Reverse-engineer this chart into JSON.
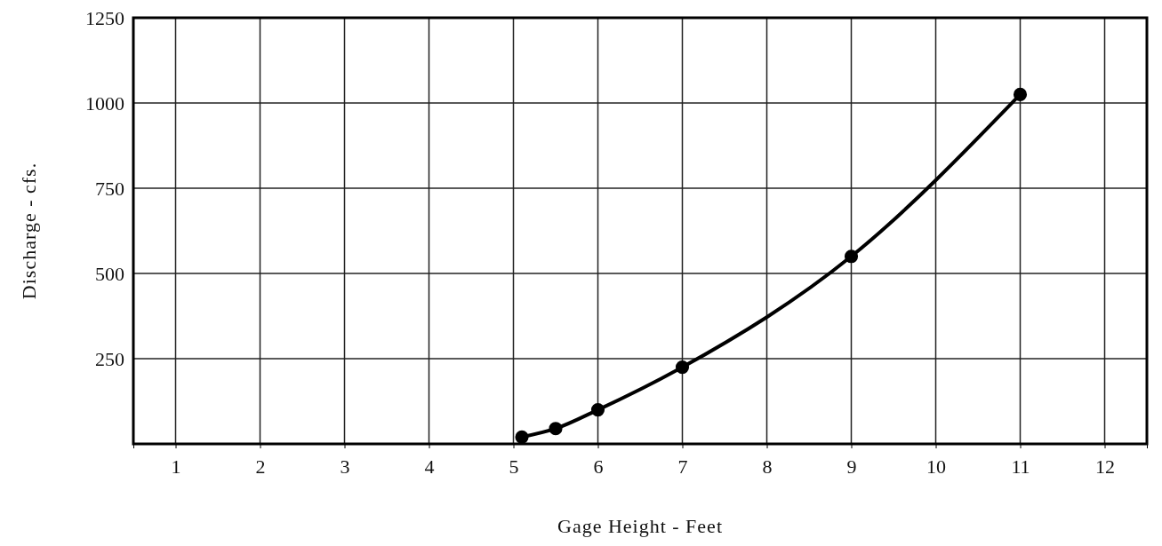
{
  "chart_data": {
    "type": "line",
    "xlabel": "Gage Height - Feet",
    "ylabel": "Discharge - cfs.",
    "x": [
      5.1,
      5.5,
      6,
      7,
      9,
      11
    ],
    "series": [
      {
        "color": "#000000",
        "values": [
          20,
          45,
          100,
          225,
          550,
          1025
        ]
      }
    ],
    "xlim": [
      0.5,
      12.5
    ],
    "ylim": [
      0,
      1250
    ],
    "xticks": [
      1,
      2,
      3,
      4,
      5,
      6,
      7,
      8,
      9,
      10,
      11,
      12
    ],
    "yticks": [
      {
        "value": 0,
        "label": null
      },
      250,
      500,
      750,
      1000,
      1250
    ],
    "grid": true,
    "marker": "circle",
    "line_style": "solid"
  }
}
